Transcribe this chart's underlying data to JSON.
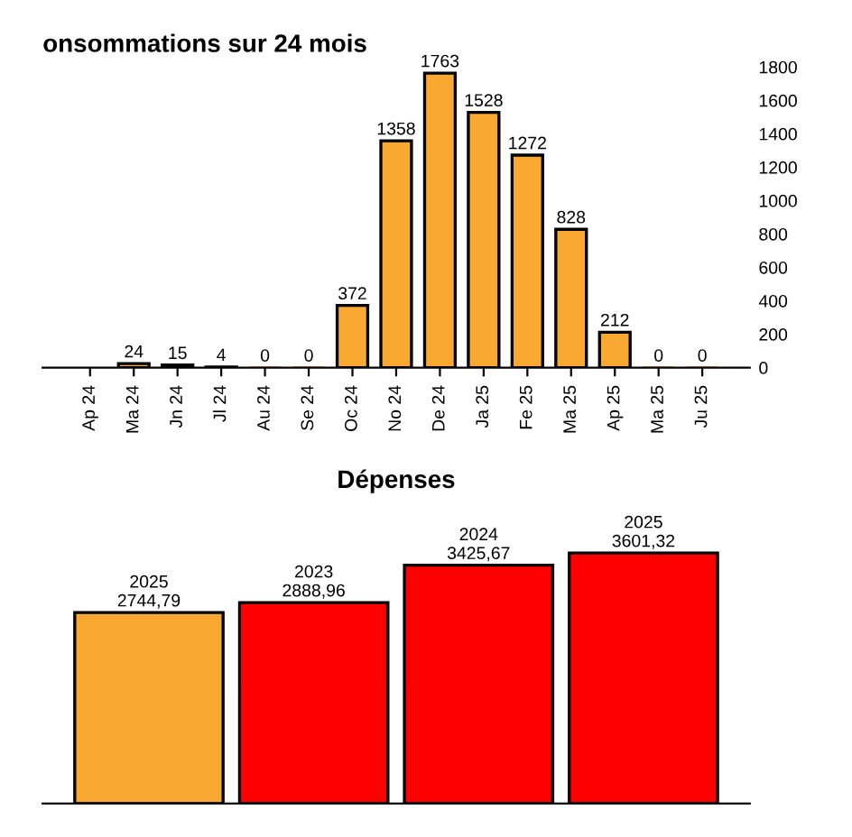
{
  "chart_data": [
    {
      "type": "bar",
      "title": "onsommations sur 24 mois",
      "categories": [
        "Ap 24",
        "Ma 24",
        "Jn 24",
        "Jl 24",
        "Au 24",
        "Se 24",
        "Oc 24",
        "No 24",
        "De 24",
        "Ja 25",
        "Fe 25",
        "Ma 25",
        "Ap 25",
        "Ma 25",
        "Ju 25"
      ],
      "values": [
        null,
        24,
        15,
        4,
        0,
        0,
        372,
        1358,
        1763,
        1528,
        1272,
        828,
        212,
        0,
        0
      ],
      "color": "#f9a832",
      "data_labels": true,
      "ylim": [
        0,
        1800
      ],
      "yticks": [
        0,
        200,
        400,
        600,
        800,
        1000,
        1200,
        1400,
        1600,
        1800
      ]
    },
    {
      "type": "bar",
      "title": "Dépenses",
      "categories": [
        null,
        null,
        null,
        null
      ],
      "values": [
        2744.79,
        2888.96,
        3425.67,
        3601.32
      ],
      "colors": [
        "#f9a832",
        "#ff0000",
        "#ff0000",
        "#ff0000"
      ],
      "value_labels": [
        "2025\n2744,79",
        "2023\n2888,96",
        "2024\n3425,67",
        "2025\n3601,32"
      ]
    }
  ]
}
